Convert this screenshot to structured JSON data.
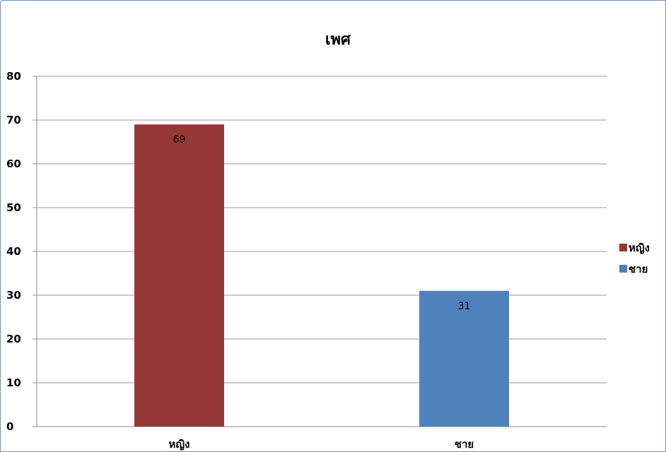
{
  "chart_data": {
    "type": "bar",
    "title": "เพศ",
    "categories": [
      "หญิง",
      "ชาย"
    ],
    "values": [
      69,
      31
    ],
    "colors": [
      "#953735",
      "#4f81bd"
    ],
    "ylim": [
      0,
      80
    ],
    "yticks": [
      "0",
      "10",
      "20",
      "30",
      "40",
      "50",
      "60",
      "70",
      "80"
    ],
    "grid": true,
    "legend": {
      "position": "right",
      "entries": [
        "หญิง",
        "ชาย"
      ]
    }
  }
}
